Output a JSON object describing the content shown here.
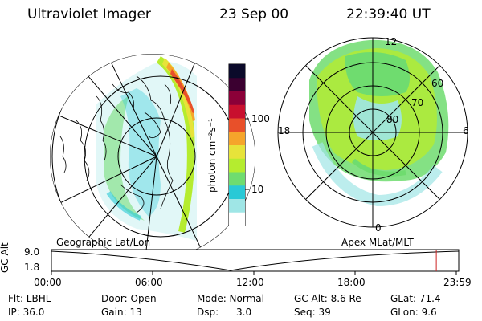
{
  "header": {
    "instrument": "Ultraviolet Imager",
    "date": "23 Sep 00",
    "time": "22:39:40 UT"
  },
  "colorbar": {
    "unit_label": "photon cm⁻²s⁻¹",
    "ticks": [
      "100",
      "10"
    ],
    "colors": [
      "#ffffff",
      "#9fe6e6",
      "#29c9d6",
      "#6fdc6f",
      "#b5ec2f",
      "#e7e33a",
      "#f5a52b",
      "#e8502a",
      "#c8102e",
      "#8b0038",
      "#3b0030",
      "#0b0a2a"
    ]
  },
  "maps": {
    "left_label": "Geographic Lat/Lon",
    "right_label": "Apex MLat/MLT",
    "mlt_labels": [
      "12",
      "18",
      "6",
      "0"
    ],
    "mlat_labels": [
      "60",
      "70",
      "80"
    ]
  },
  "altitude_plot": {
    "axis_label": "GC Alt",
    "y_ticks": [
      "9.0",
      "1.8"
    ],
    "x_ticks": [
      "00:00",
      "06:00",
      "12:00",
      "18:00",
      "23:59"
    ],
    "current_time_fraction": 0.945,
    "marker_color": "#cc2222"
  },
  "info": {
    "row1": {
      "filter": "Flt: LBHL",
      "door": "Door: Open",
      "mode": "Mode: Normal",
      "gc_alt": "GC Alt: 8.6 Re",
      "glat": "GLat: 71.4"
    },
    "row2": {
      "ip": "IP: 36.0",
      "gain": "Gain: 13",
      "dsp_label": "Dsp:",
      "dsp_value": "3.0",
      "seq": "Seq: 39",
      "glon": "GLon: 9.6"
    }
  }
}
